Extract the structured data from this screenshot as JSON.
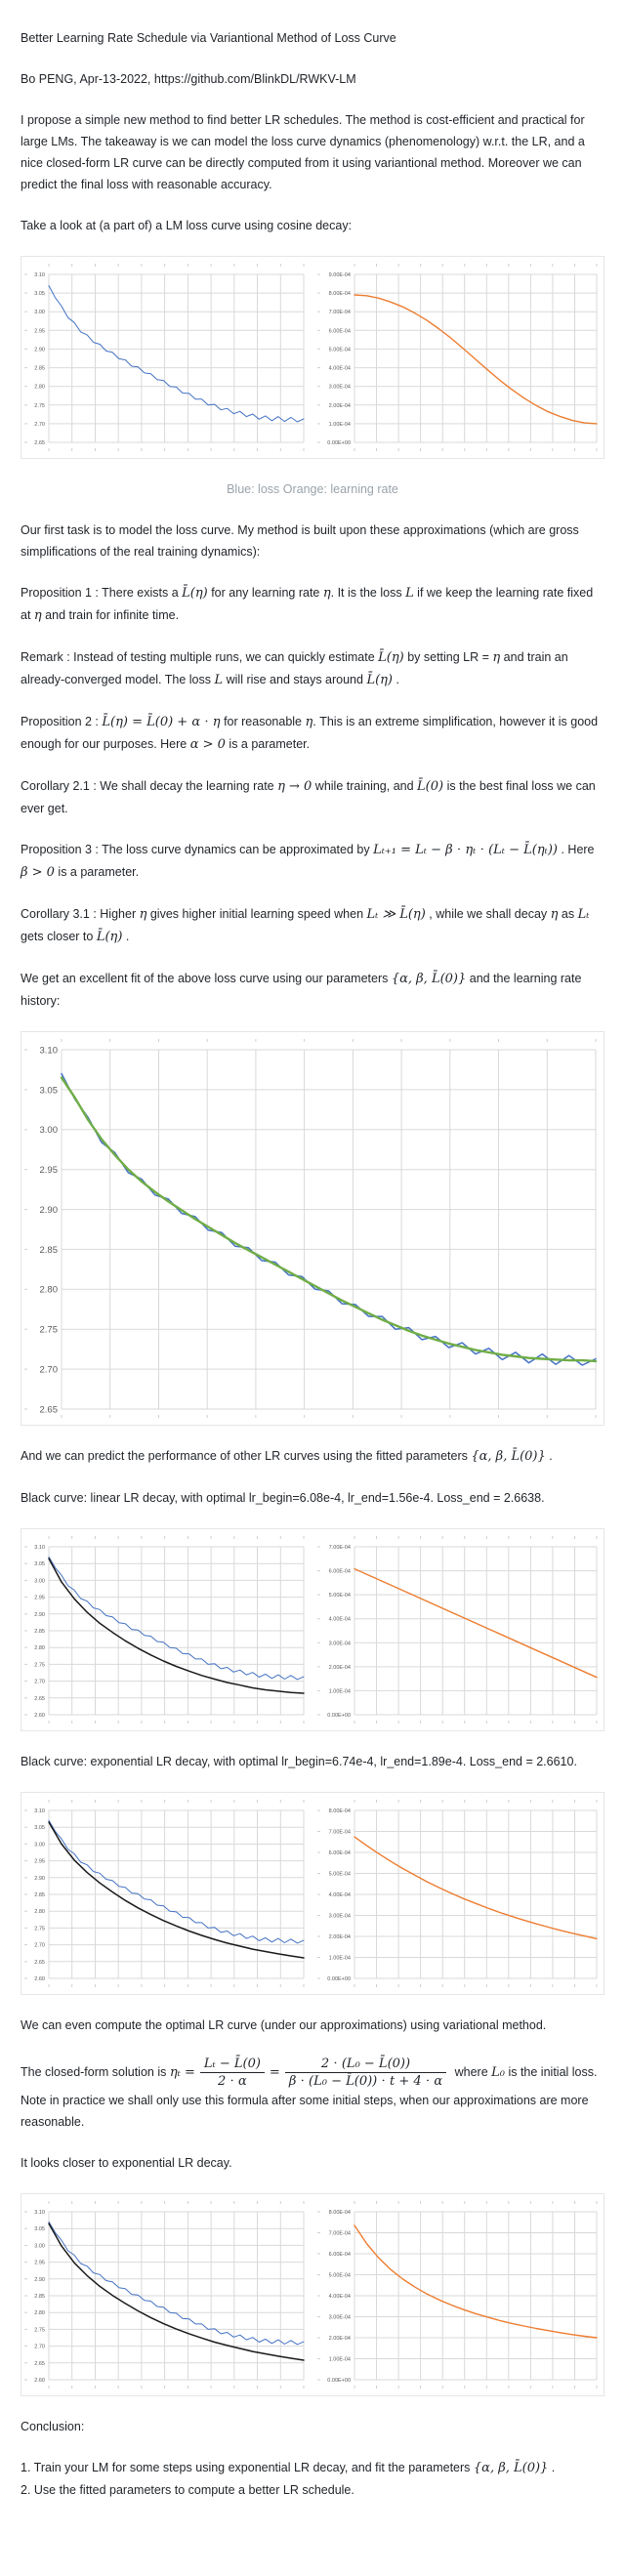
{
  "colors": {
    "loss_blue": "#4472c4",
    "lr_orange": "#ed7d31",
    "fit_green": "#70ad47",
    "pred_black": "#1a1a1a",
    "grid": "#d9d9d9",
    "tick_text": "#595959",
    "caption_gray": "#9aa3ab",
    "body_text": "#1f2328"
  },
  "doc": {
    "title": "Better Learning Rate Schedule via Variantional Method of Loss Curve",
    "byline": "Bo PENG, Apr-13-2022, https://github.com/BlinkDL/RWKV-LM",
    "intro": "I propose a simple new method to find better LR schedules. The method is cost-efficient and practical for large LMs. The takeaway is we can model the loss curve dynamics (phenomenology) w.r.t. the LR, and a nice closed-form LR curve can be directly computed from it using variantional method. Moreover we can predict the final loss with reasonable accuracy.",
    "take_a_look": "Take a look at (a part of) a LM loss curve using cosine decay:",
    "caption_pair1": "Blue: loss Orange: learning rate",
    "our_first_task": "Our first task is to model the loss curve. My method is built upon these approximations (which are gross simplifications of the real training dynamics):",
    "prop1": [
      {
        "t": "Proposition 1 : There exists a "
      },
      {
        "m": "L̄(η)"
      },
      {
        "t": " for any learning rate "
      },
      {
        "m": "η"
      },
      {
        "t": ". It is the loss "
      },
      {
        "m": "L"
      },
      {
        "t": " if we keep the learning rate fixed at "
      },
      {
        "m": "η"
      },
      {
        "t": " and train for infinite time."
      }
    ],
    "remark": [
      {
        "t": "Remark : Instead of testing multiple runs, we can quickly estimate "
      },
      {
        "m": "L̄(η)"
      },
      {
        "t": " by setting LR = "
      },
      {
        "m": "η"
      },
      {
        "t": " and train an already-converged model. The loss "
      },
      {
        "m": "L"
      },
      {
        "t": " will rise and stays around "
      },
      {
        "m": "L̄(η)"
      },
      {
        "t": " ."
      }
    ],
    "prop2": [
      {
        "t": "Proposition 2 : "
      },
      {
        "m": "L̄(η) = L̄(0) + α ⋅ η"
      },
      {
        "t": " for reasonable "
      },
      {
        "m": "η"
      },
      {
        "t": ". This is an extreme simplification, however it is good enough for our purposes. Here "
      },
      {
        "m": "α > 0"
      },
      {
        "t": " is a parameter."
      }
    ],
    "cor21": [
      {
        "t": "Corollary 2.1 : We shall decay the learning rate "
      },
      {
        "m": "η → 0"
      },
      {
        "t": " while training, and "
      },
      {
        "m": "L̄(0)"
      },
      {
        "t": " is the best final loss we can ever get."
      }
    ],
    "prop3": [
      {
        "t": "Proposition 3 : The loss curve dynamics can be approximated by "
      },
      {
        "m": "Lₜ₊₁ = Lₜ − β ⋅ ηₜ ⋅ (Lₜ − L̄(ηₜ))"
      },
      {
        "t": " . Here "
      },
      {
        "m": "β > 0"
      },
      {
        "t": " is a parameter."
      }
    ],
    "cor31": [
      {
        "t": "Corollary 3.1 : Higher "
      },
      {
        "m": "η"
      },
      {
        "t": " gives higher initial learning speed when "
      },
      {
        "m": "Lₜ ≫ L̄(η)"
      },
      {
        "t": " , while we shall decay "
      },
      {
        "m": "η"
      },
      {
        "t": " as "
      },
      {
        "m": "Lₜ"
      },
      {
        "t": " gets closer to "
      },
      {
        "m": "L̄(η)"
      },
      {
        "t": " ."
      }
    ],
    "excellent_fit": [
      {
        "t": "We get an excellent fit of the above loss curve using our parameters "
      },
      {
        "m": "{α, β, L̄(0)}"
      },
      {
        "t": " and the learning rate history:"
      }
    ],
    "predict": [
      {
        "t": "And we can predict the performance of other LR curves using the fitted parameters "
      },
      {
        "m": "{α, β, L̄(0)}"
      },
      {
        "t": " ."
      }
    ],
    "black_linear": "Black curve: linear LR decay, with optimal lr_begin=6.08e-4, lr_end=1.56e-4. Loss_end = 2.6638.",
    "black_exponential": "Black curve: exponential LR decay, with optimal lr_begin=6.74e-4, lr_end=1.89e-4. Loss_end = 2.6610.",
    "compute_optimal": "We can even compute the optimal LR curve (under our approximations) using variational method.",
    "closed_form": {
      "lead_segs": [
        {
          "t": "The closed-form solution is "
        },
        {
          "m": "ηₜ ="
        }
      ],
      "num1": "Lₜ − L̄(0)",
      "den1": "2 ⋅ α",
      "eq2": "=",
      "num2": "2 ⋅ (L₀ − L̄(0))",
      "den2": "β ⋅ (L₀ − L̄(0)) ⋅ t + 4 ⋅ α",
      "tail_segs": [
        {
          "t": " where "
        },
        {
          "m": "L₀"
        },
        {
          "t": " is the initial loss. Note in practice we shall only use this formula after some initial steps, when our approximations are more reasonable."
        }
      ]
    },
    "looks_closer": "It looks closer to exponential LR decay.",
    "conclusion_heading": "Conclusion:",
    "conclusion_item1": [
      {
        "t": "1. Train your LM for some steps using exponential LR decay, and fit the parameters "
      },
      {
        "m": "{α, β, L̄(0)}"
      },
      {
        "t": " ."
      }
    ],
    "conclusion_item2": "2. Use the fitted parameters to compute a better LR schedule."
  },
  "chart_data": [
    {
      "type": "line",
      "name": "loss curve with cosine LR decay (blue: loss)",
      "ymin": 2.65,
      "ymax": 3.1,
      "yticks": [
        "3.10",
        "3.05",
        "3.00",
        "2.95",
        "2.90",
        "2.85",
        "2.80",
        "2.75",
        "2.70",
        "2.65"
      ],
      "xdivs": 11,
      "pad_left": 25,
      "tick_font": 5.5,
      "grid": true,
      "legend": "none",
      "series": [
        {
          "name": "loss",
          "color": "#4472c4",
          "width": 1.0,
          "values": [
            3.07,
            3.038,
            3.015,
            2.984,
            2.971,
            2.946,
            2.938,
            2.918,
            2.913,
            2.895,
            2.891,
            2.874,
            2.871,
            2.854,
            2.852,
            2.836,
            2.834,
            2.818,
            2.816,
            2.8,
            2.798,
            2.782,
            2.781,
            2.766,
            2.766,
            2.75,
            2.752,
            2.737,
            2.741,
            2.727,
            2.733,
            2.719,
            2.726,
            2.712,
            2.721,
            2.708,
            2.719,
            2.706,
            2.717,
            2.705,
            2.713
          ]
        }
      ]
    },
    {
      "type": "line",
      "name": "cosine learning rate schedule (orange: learning rate)",
      "ymin": 0,
      "ymax": 0.0009,
      "yticks": [
        "9.00E-04",
        "8.00E-04",
        "7.00E-04",
        "6.00E-04",
        "5.00E-04",
        "4.00E-04",
        "3.00E-04",
        "2.00E-04",
        "1.00E-04",
        "0.00E+00"
      ],
      "xdivs": 11,
      "pad_left": 38,
      "tick_font": 5.5,
      "grid": true,
      "legend": "none",
      "series": [
        {
          "name": "learning rate",
          "color": "#ed7d31",
          "width": 1.4,
          "values": [
            0.00079,
            0.000786,
            0.000773,
            0.000752,
            0.000726,
            0.000692,
            0.000653,
            0.000607,
            0.000557,
            0.000502,
            0.000445,
            0.000388,
            0.000333,
            0.000283,
            0.000237,
            0.000198,
            0.000164,
            0.000138,
            0.000117,
            0.000104,
            0.0001
          ]
        }
      ]
    },
    {
      "type": "line",
      "name": "loss curve (blue) with fitted model (green)",
      "ymin": 2.65,
      "ymax": 3.1,
      "yticks": [
        "3.10",
        "3.05",
        "3.00",
        "2.95",
        "2.90",
        "2.85",
        "2.80",
        "2.75",
        "2.70",
        "2.65"
      ],
      "xdivs": 11,
      "pad_left": 38,
      "tick_font": 9.5,
      "grid": true,
      "legend": "none",
      "series": [
        {
          "name": "loss",
          "color": "#4472c4",
          "width": 1.5,
          "values": [
            3.07,
            3.038,
            3.015,
            2.984,
            2.971,
            2.946,
            2.938,
            2.918,
            2.913,
            2.895,
            2.891,
            2.874,
            2.871,
            2.854,
            2.852,
            2.836,
            2.834,
            2.818,
            2.816,
            2.8,
            2.798,
            2.782,
            2.781,
            2.766,
            2.766,
            2.75,
            2.752,
            2.737,
            2.741,
            2.727,
            2.733,
            2.719,
            2.726,
            2.712,
            2.721,
            2.708,
            2.719,
            2.706,
            2.717,
            2.705,
            2.713
          ]
        },
        {
          "name": "fitted model",
          "color": "#70ad47",
          "width": 2.4,
          "values": [
            3.065,
            3.04,
            3.012,
            2.988,
            2.968,
            2.95,
            2.935,
            2.922,
            2.91,
            2.899,
            2.888,
            2.878,
            2.868,
            2.858,
            2.849,
            2.84,
            2.831,
            2.822,
            2.813,
            2.804,
            2.795,
            2.786,
            2.778,
            2.77,
            2.762,
            2.755,
            2.748,
            2.742,
            2.737,
            2.732,
            2.728,
            2.724,
            2.721,
            2.718,
            2.716,
            2.714,
            2.713,
            2.712,
            2.711,
            2.711,
            2.71
          ]
        }
      ]
    },
    {
      "type": "line",
      "name": "actual loss (blue) vs predicted loss for linear LR decay (black)",
      "ymin": 2.6,
      "ymax": 3.1,
      "yticks": [
        "3.10",
        "3.05",
        "3.00",
        "2.95",
        "2.90",
        "2.85",
        "2.80",
        "2.75",
        "2.70",
        "2.65",
        "2.60"
      ],
      "xdivs": 11,
      "pad_left": 25,
      "tick_font": 5.5,
      "grid": true,
      "legend": "none",
      "series": [
        {
          "name": "loss",
          "color": "#4472c4",
          "width": 1.0,
          "values": [
            3.07,
            3.038,
            3.015,
            2.984,
            2.971,
            2.946,
            2.938,
            2.918,
            2.913,
            2.895,
            2.891,
            2.874,
            2.871,
            2.854,
            2.852,
            2.836,
            2.834,
            2.818,
            2.816,
            2.8,
            2.798,
            2.782,
            2.781,
            2.766,
            2.766,
            2.75,
            2.752,
            2.737,
            2.741,
            2.727,
            2.733,
            2.719,
            2.726,
            2.712,
            2.721,
            2.708,
            2.719,
            2.706,
            2.717,
            2.705,
            2.713
          ]
        },
        {
          "name": "predicted loss, linear LR decay, loss_end 2.6638",
          "color": "#1a1a1a",
          "width": 1.5,
          "values": [
            3.065,
            2.995,
            2.945,
            2.905,
            2.872,
            2.845,
            2.82,
            2.798,
            2.778,
            2.76,
            2.744,
            2.73,
            2.717,
            2.706,
            2.696,
            2.688,
            2.68,
            2.674,
            2.67,
            2.666,
            2.664
          ]
        }
      ]
    },
    {
      "type": "line",
      "name": "linear LR decay schedule, lr_begin 6.08e-4 to lr_end 1.56e-4",
      "ymin": 0,
      "ymax": 0.0007,
      "yticks": [
        "7.00E-04",
        "6.00E-04",
        "5.00E-04",
        "4.00E-04",
        "3.00E-04",
        "2.00E-04",
        "1.00E-04",
        "0.00E+00"
      ],
      "xdivs": 11,
      "pad_left": 38,
      "tick_font": 5.5,
      "grid": true,
      "legend": "none",
      "series": [
        {
          "name": "learning rate",
          "color": "#ed7d31",
          "width": 1.4,
          "values": [
            0.000608,
            0.000156
          ]
        }
      ]
    },
    {
      "type": "line",
      "name": "actual loss (blue) vs predicted loss for exponential LR decay (black)",
      "ymin": 2.6,
      "ymax": 3.1,
      "yticks": [
        "3.10",
        "3.05",
        "3.00",
        "2.95",
        "2.90",
        "2.85",
        "2.80",
        "2.75",
        "2.70",
        "2.65",
        "2.60"
      ],
      "xdivs": 11,
      "pad_left": 25,
      "tick_font": 5.5,
      "grid": true,
      "legend": "none",
      "series": [
        {
          "name": "loss",
          "color": "#4472c4",
          "width": 1.0,
          "values": [
            3.07,
            3.038,
            3.015,
            2.984,
            2.971,
            2.946,
            2.938,
            2.918,
            2.913,
            2.895,
            2.891,
            2.874,
            2.871,
            2.854,
            2.852,
            2.836,
            2.834,
            2.818,
            2.816,
            2.8,
            2.798,
            2.782,
            2.781,
            2.766,
            2.766,
            2.75,
            2.752,
            2.737,
            2.741,
            2.727,
            2.733,
            2.719,
            2.726,
            2.712,
            2.721,
            2.708,
            2.719,
            2.706,
            2.717,
            2.705,
            2.713
          ]
        },
        {
          "name": "predicted loss, exponential LR decay, loss_end 2.6610",
          "color": "#1a1a1a",
          "width": 1.5,
          "values": [
            3.065,
            3.0,
            2.952,
            2.915,
            2.884,
            2.857,
            2.832,
            2.81,
            2.79,
            2.772,
            2.756,
            2.741,
            2.728,
            2.716,
            2.705,
            2.696,
            2.687,
            2.68,
            2.673,
            2.667,
            2.661
          ]
        }
      ]
    },
    {
      "type": "line",
      "name": "exponential LR decay schedule, lr_begin 6.74e-4 to lr_end 1.89e-4",
      "ymin": 0,
      "ymax": 0.0008,
      "yticks": [
        "8.00E-04",
        "7.00E-04",
        "6.00E-04",
        "5.00E-04",
        "4.00E-04",
        "3.00E-04",
        "2.00E-04",
        "1.00E-04",
        "0.00E+00"
      ],
      "xdivs": 11,
      "pad_left": 38,
      "tick_font": 5.5,
      "grid": true,
      "legend": "none",
      "series": [
        {
          "name": "learning rate",
          "color": "#ed7d31",
          "width": 1.4,
          "values": [
            0.000674,
            0.000633,
            0.000594,
            0.000557,
            0.000523,
            0.000491,
            0.00046,
            0.000432,
            0.000405,
            0.00038,
            0.000357,
            0.000335,
            0.000314,
            0.000295,
            0.000277,
            0.00026,
            0.000244,
            0.000229,
            0.000215,
            0.000202,
            0.000189
          ]
        }
      ]
    },
    {
      "type": "line",
      "name": "actual loss (blue) vs predicted loss for optimal variational LR curve (black)",
      "ymin": 2.6,
      "ymax": 3.1,
      "yticks": [
        "3.10",
        "3.05",
        "3.00",
        "2.95",
        "2.90",
        "2.85",
        "2.80",
        "2.75",
        "2.70",
        "2.65",
        "2.60"
      ],
      "xdivs": 11,
      "pad_left": 25,
      "tick_font": 5.5,
      "grid": true,
      "legend": "none",
      "series": [
        {
          "name": "loss",
          "color": "#4472c4",
          "width": 1.0,
          "values": [
            3.07,
            3.038,
            3.015,
            2.984,
            2.971,
            2.946,
            2.938,
            2.918,
            2.913,
            2.895,
            2.891,
            2.874,
            2.871,
            2.854,
            2.852,
            2.836,
            2.834,
            2.818,
            2.816,
            2.8,
            2.798,
            2.782,
            2.781,
            2.766,
            2.766,
            2.75,
            2.752,
            2.737,
            2.741,
            2.727,
            2.733,
            2.719,
            2.726,
            2.712,
            2.721,
            2.708,
            2.719,
            2.706,
            2.717,
            2.705,
            2.713
          ]
        },
        {
          "name": "predicted loss, optimal LR curve",
          "color": "#1a1a1a",
          "width": 1.5,
          "values": [
            3.065,
            2.998,
            2.948,
            2.91,
            2.878,
            2.851,
            2.827,
            2.805,
            2.785,
            2.767,
            2.751,
            2.737,
            2.724,
            2.712,
            2.702,
            2.693,
            2.684,
            2.677,
            2.67,
            2.664,
            2.658
          ]
        }
      ]
    },
    {
      "type": "line",
      "name": "optimal variational LR schedule (hyperbolic decay)",
      "ymin": 0,
      "ymax": 0.0008,
      "yticks": [
        "8.00E-04",
        "7.00E-04",
        "6.00E-04",
        "5.00E-04",
        "4.00E-04",
        "3.00E-04",
        "2.00E-04",
        "1.00E-04",
        "0.00E+00"
      ],
      "xdivs": 11,
      "pad_left": 38,
      "tick_font": 5.5,
      "grid": true,
      "legend": "none",
      "series": [
        {
          "name": "learning rate",
          "color": "#ed7d31",
          "width": 1.4,
          "values": [
            0.000735,
            0.000649,
            0.00058,
            0.000524,
            0.000479,
            0.000441,
            0.000408,
            0.00038,
            0.000356,
            0.000334,
            0.000315,
            0.000298,
            0.000282,
            0.000268,
            0.000256,
            0.000244,
            0.000234,
            0.000224,
            0.000215,
            0.000207,
            0.0002
          ]
        }
      ]
    }
  ]
}
